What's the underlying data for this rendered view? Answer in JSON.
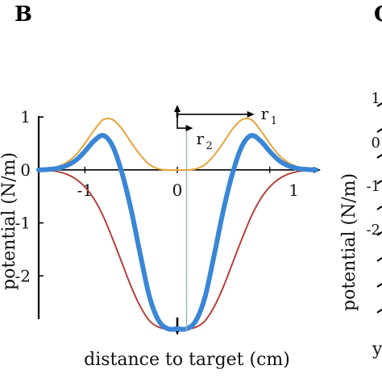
{
  "panel_label": "B",
  "cropped_panel_label": "C",
  "chart_data": [
    {
      "type": "line",
      "title": "",
      "xlabel": "distance to target (cm)",
      "ylabel": "potential (N/m)",
      "xlim": [
        -1.5,
        1.5
      ],
      "ylim": [
        -3.0,
        1.2
      ],
      "x_ticks": [
        "-1",
        "0",
        "1"
      ],
      "y_ticks": [
        "1",
        "0",
        "-1",
        "-2"
      ],
      "grid": false,
      "legend": "none",
      "annotations": {
        "r1": {
          "text": "r",
          "subscript": "1",
          "from_x": 0.0,
          "to_x": 0.8,
          "y": 1.05
        },
        "r2": {
          "text": "r",
          "subscript": "2",
          "x": 0.0,
          "to_x": 0.1,
          "y": 0.85
        }
      },
      "series": [
        {
          "color": "#E8A33A",
          "role": "positive component",
          "x": [
            -1.5,
            -1.4,
            -1.3,
            -1.2,
            -1.1,
            -1.0,
            -0.9,
            -0.8,
            -0.7,
            -0.6,
            -0.5,
            -0.4,
            -0.3,
            -0.2,
            -0.1,
            0.0,
            0.1,
            0.2,
            0.3,
            0.4,
            0.5,
            0.6,
            0.7,
            0.8,
            0.9,
            1.0,
            1.1,
            1.2,
            1.3,
            1.4,
            1.5
          ],
          "values": [
            0.0,
            0.02,
            0.06,
            0.14,
            0.28,
            0.5,
            0.75,
            0.95,
            0.95,
            0.78,
            0.52,
            0.28,
            0.1,
            0.02,
            0.0,
            0.0,
            0.0,
            0.02,
            0.1,
            0.28,
            0.52,
            0.78,
            0.95,
            0.95,
            0.75,
            0.5,
            0.28,
            0.14,
            0.06,
            0.02,
            0.0
          ]
        },
        {
          "color": "#B5413D",
          "role": "negative component",
          "x": [
            -1.5,
            -1.4,
            -1.3,
            -1.2,
            -1.1,
            -1.0,
            -0.9,
            -0.8,
            -0.7,
            -0.6,
            -0.5,
            -0.4,
            -0.3,
            -0.2,
            -0.1,
            0.0,
            0.1,
            0.2,
            0.3,
            0.4,
            0.5,
            0.6,
            0.7,
            0.8,
            0.9,
            1.0,
            1.1,
            1.2,
            1.3,
            1.4,
            1.5
          ],
          "values": [
            0.0,
            -0.01,
            -0.03,
            -0.08,
            -0.17,
            -0.32,
            -0.55,
            -0.88,
            -1.3,
            -1.75,
            -2.2,
            -2.58,
            -2.85,
            -2.97,
            -3.0,
            -3.0,
            -3.0,
            -2.97,
            -2.85,
            -2.58,
            -2.2,
            -1.75,
            -1.3,
            -0.88,
            -0.55,
            -0.32,
            -0.17,
            -0.08,
            -0.03,
            -0.01,
            0.0
          ]
        },
        {
          "color": "#3A86D6",
          "role": "total potential",
          "x": [
            -1.5,
            -1.4,
            -1.3,
            -1.2,
            -1.1,
            -1.0,
            -0.9,
            -0.8,
            -0.7,
            -0.6,
            -0.5,
            -0.4,
            -0.3,
            -0.2,
            -0.1,
            0.0,
            0.1,
            0.2,
            0.3,
            0.4,
            0.5,
            0.6,
            0.7,
            0.8,
            0.9,
            1.0,
            1.1,
            1.2,
            1.3,
            1.4,
            1.5
          ],
          "values": [
            0.0,
            0.01,
            0.03,
            0.08,
            0.18,
            0.35,
            0.55,
            0.65,
            0.45,
            -0.05,
            -0.75,
            -1.6,
            -2.4,
            -2.85,
            -3.0,
            -3.0,
            -3.0,
            -2.85,
            -2.4,
            -1.6,
            -0.75,
            -0.05,
            0.45,
            0.65,
            0.55,
            0.35,
            0.18,
            0.08,
            0.03,
            0.01,
            0.0
          ]
        }
      ]
    },
    {
      "type": "line",
      "cropped": true,
      "ylabel": "potential (N/m)",
      "y_ticks": [
        "1",
        "0",
        "-1",
        "-2"
      ],
      "xlabel": "y"
    }
  ]
}
